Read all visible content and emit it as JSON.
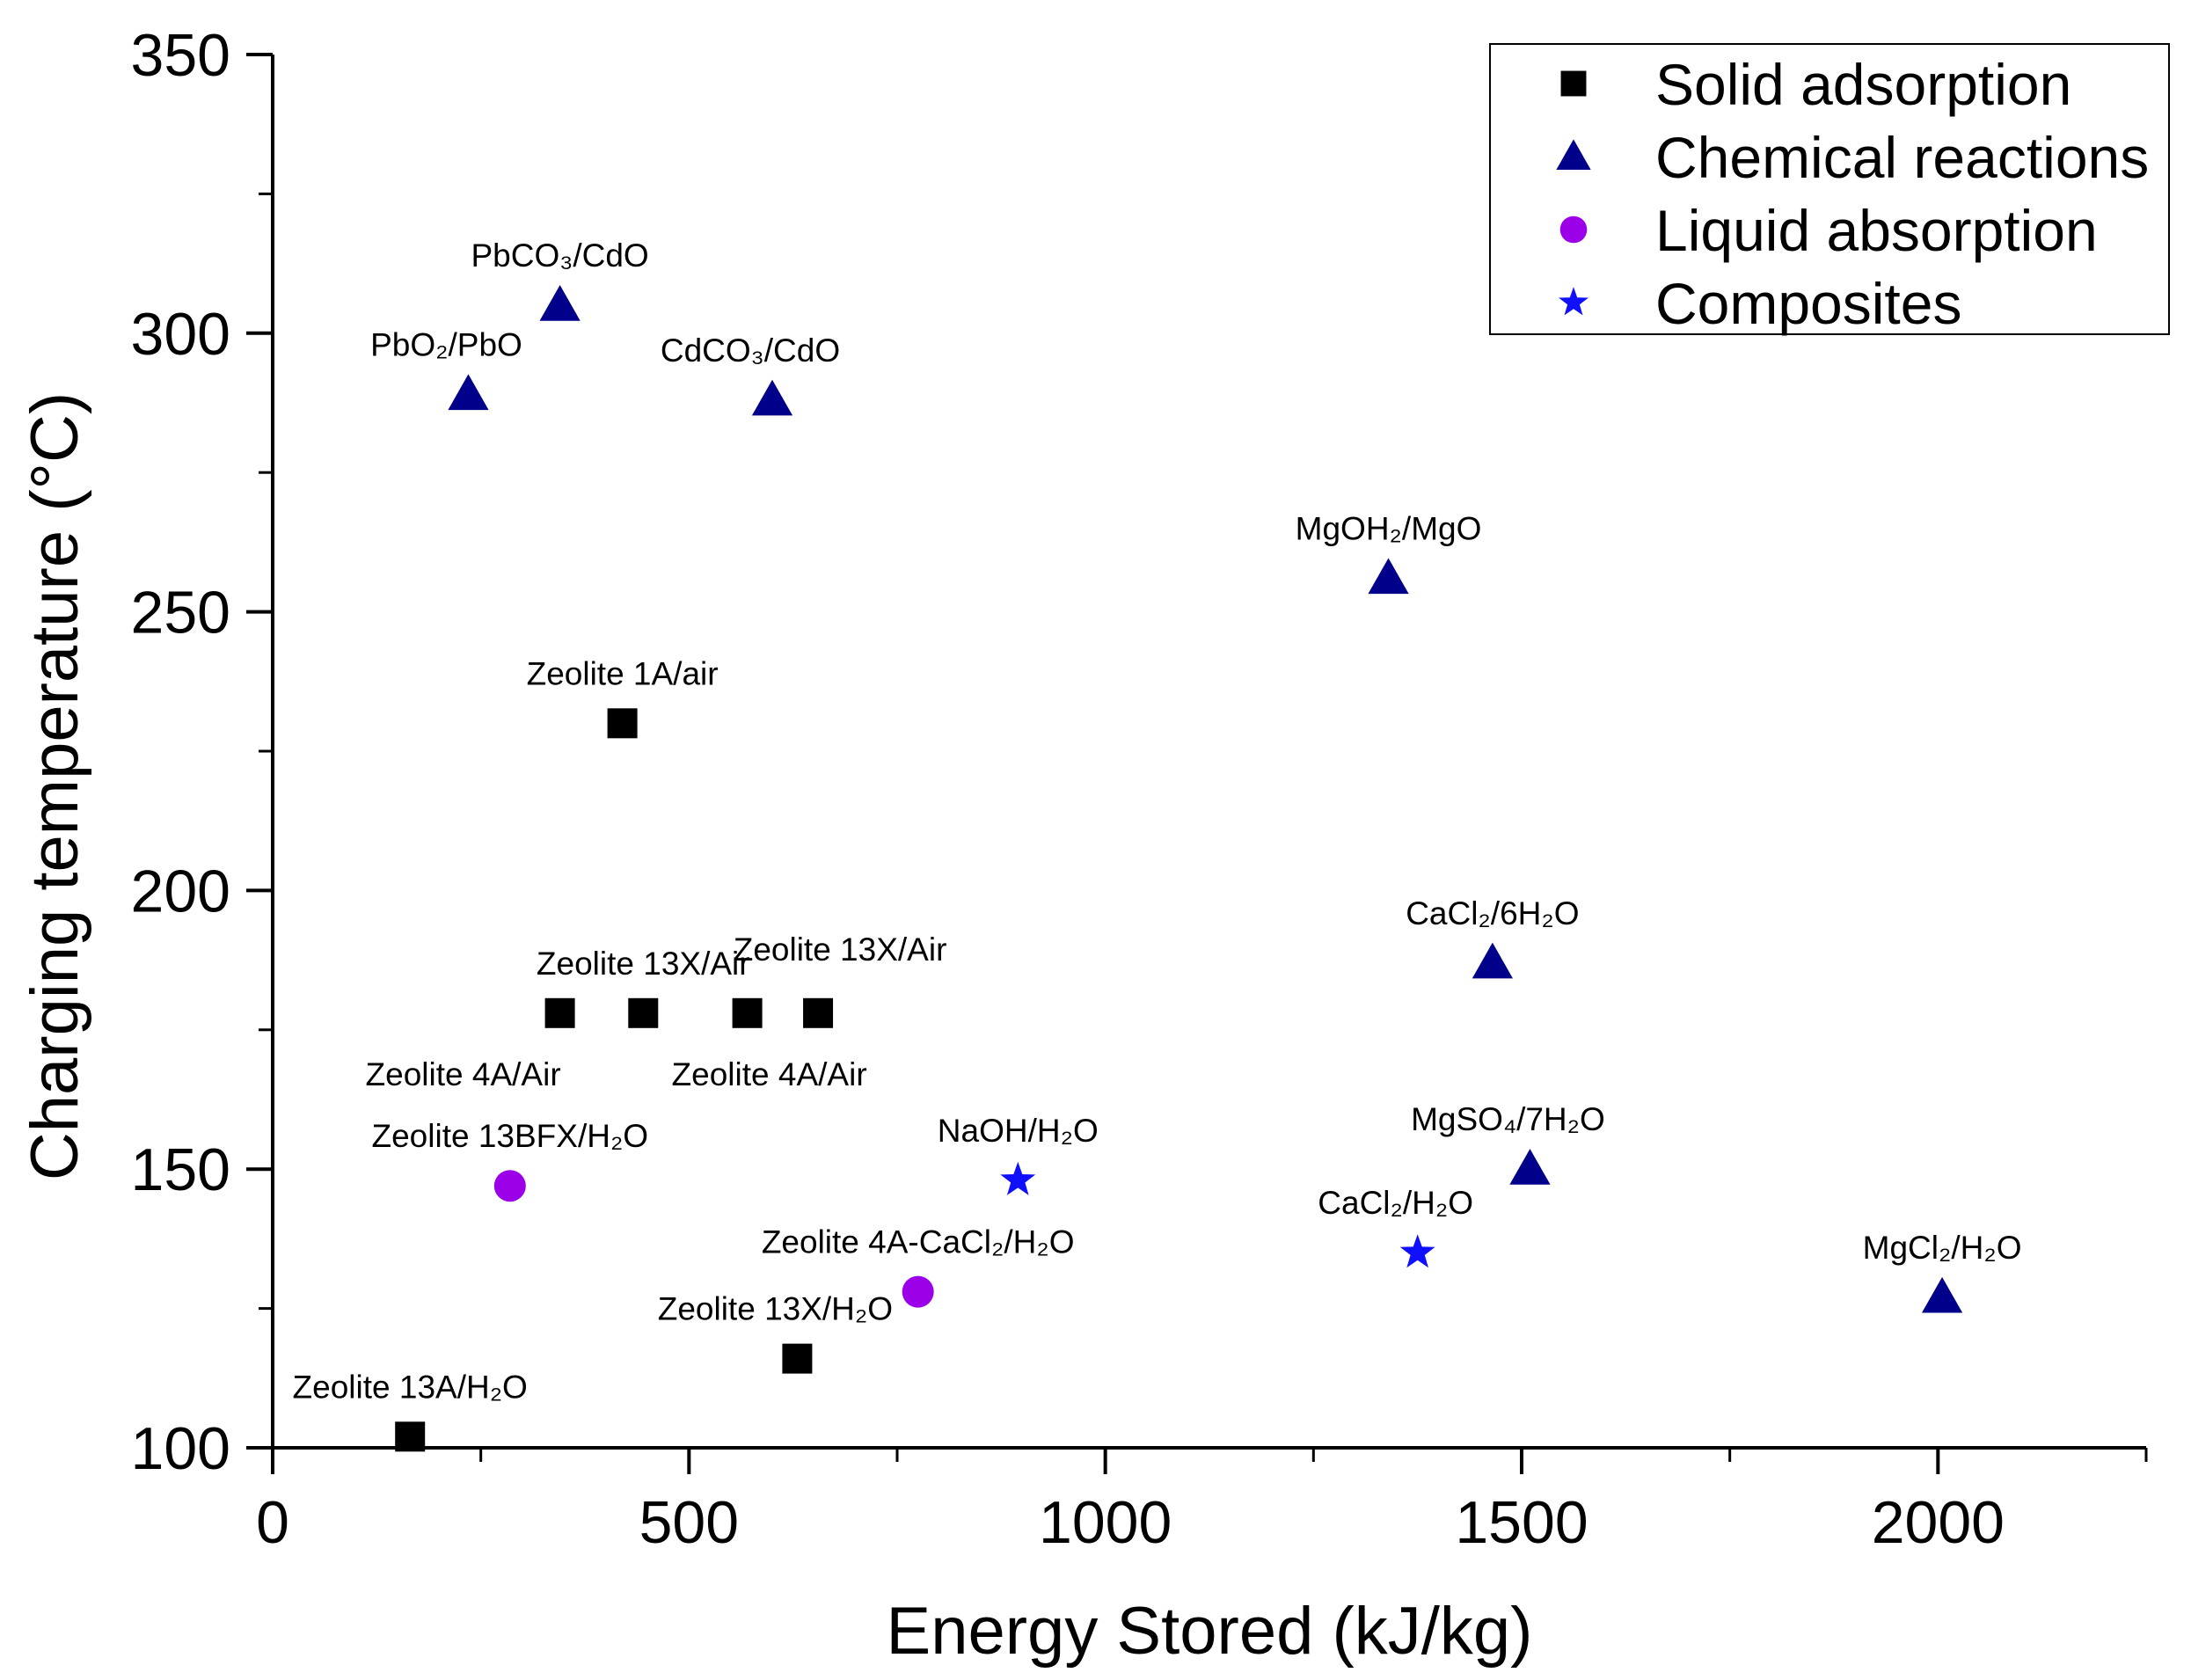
{
  "chart_data": {
    "type": "scatter",
    "title": "",
    "xlabel": "Energy Stored (kJ/kg)",
    "ylabel": "Charging temperature (°C)",
    "xlim": [
      0,
      2250
    ],
    "ylim": [
      100,
      350
    ],
    "x_ticks": [
      0,
      500,
      1000,
      1500,
      2000
    ],
    "x_tick_labels": [
      "0",
      "500",
      "1000",
      "1500",
      "2000"
    ],
    "y_ticks": [
      100,
      150,
      200,
      250,
      300,
      350
    ],
    "y_tick_labels": [
      "100",
      "150",
      "200",
      "250",
      "300",
      "350"
    ],
    "grid": false,
    "legend_position": "top-right",
    "series": [
      {
        "name": "Solid adsorption",
        "marker": "square",
        "color": "#000000",
        "points": [
          {
            "x": 420,
            "y": 230,
            "label": "Zeolite 1A/air",
            "label_pos": "above"
          },
          {
            "x": 345,
            "y": 178,
            "label": "Zeolite 4A/Air",
            "label_pos": "below-left"
          },
          {
            "x": 445,
            "y": 178,
            "label": "Zeolite 13X/Air",
            "label_pos": "above"
          },
          {
            "x": 570,
            "y": 178,
            "label": "Zeolite 4A/Air",
            "label_pos": "below"
          },
          {
            "x": 655,
            "y": 178,
            "label": "Zeolite 13X/Air",
            "label_pos": "above-right"
          },
          {
            "x": 630,
            "y": 116,
            "label": "Zeolite 13X/H₂O",
            "label_pos": "above-left"
          },
          {
            "x": 165,
            "y": 102,
            "label": "Zeolite 13A/H₂O",
            "label_pos": "above"
          }
        ]
      },
      {
        "name": "Chemical reactions",
        "marker": "triangle",
        "color": "#00008b",
        "points": [
          {
            "x": 345,
            "y": 305,
            "label": "PbCO₃/CdO",
            "label_pos": "above"
          },
          {
            "x": 235,
            "y": 289,
            "label": "PbO₂/PbO",
            "label_pos": "above-left"
          },
          {
            "x": 600,
            "y": 288,
            "label": "CdCO₃/CdO",
            "label_pos": "above-left"
          },
          {
            "x": 1340,
            "y": 256,
            "label": "MgOH₂/MgO",
            "label_pos": "above"
          },
          {
            "x": 1465,
            "y": 187,
            "label": "CaCl₂/6H₂O",
            "label_pos": "above"
          },
          {
            "x": 1510,
            "y": 150,
            "label": "MgSO₄/7H₂O",
            "label_pos": "above-left"
          },
          {
            "x": 2005,
            "y": 127,
            "label": "MgCl₂/H₂O",
            "label_pos": "above"
          }
        ]
      },
      {
        "name": "Liquid absorption",
        "marker": "circle",
        "color": "#9b00e8",
        "points": [
          {
            "x": 285,
            "y": 147,
            "label": "Zeolite 13BFX/H₂O",
            "label_pos": "above"
          },
          {
            "x": 775,
            "y": 128,
            "label": "Zeolite 4A-CaCl₂/H₂O",
            "label_pos": "above"
          }
        ]
      },
      {
        "name": "Composites",
        "marker": "star",
        "color": "#1010ff",
        "points": [
          {
            "x": 895,
            "y": 148,
            "label": "NaOH/H₂O",
            "label_pos": "above"
          },
          {
            "x": 1375,
            "y": 135,
            "label": "CaCl₂/H₂O",
            "label_pos": "above-left"
          }
        ]
      }
    ]
  }
}
